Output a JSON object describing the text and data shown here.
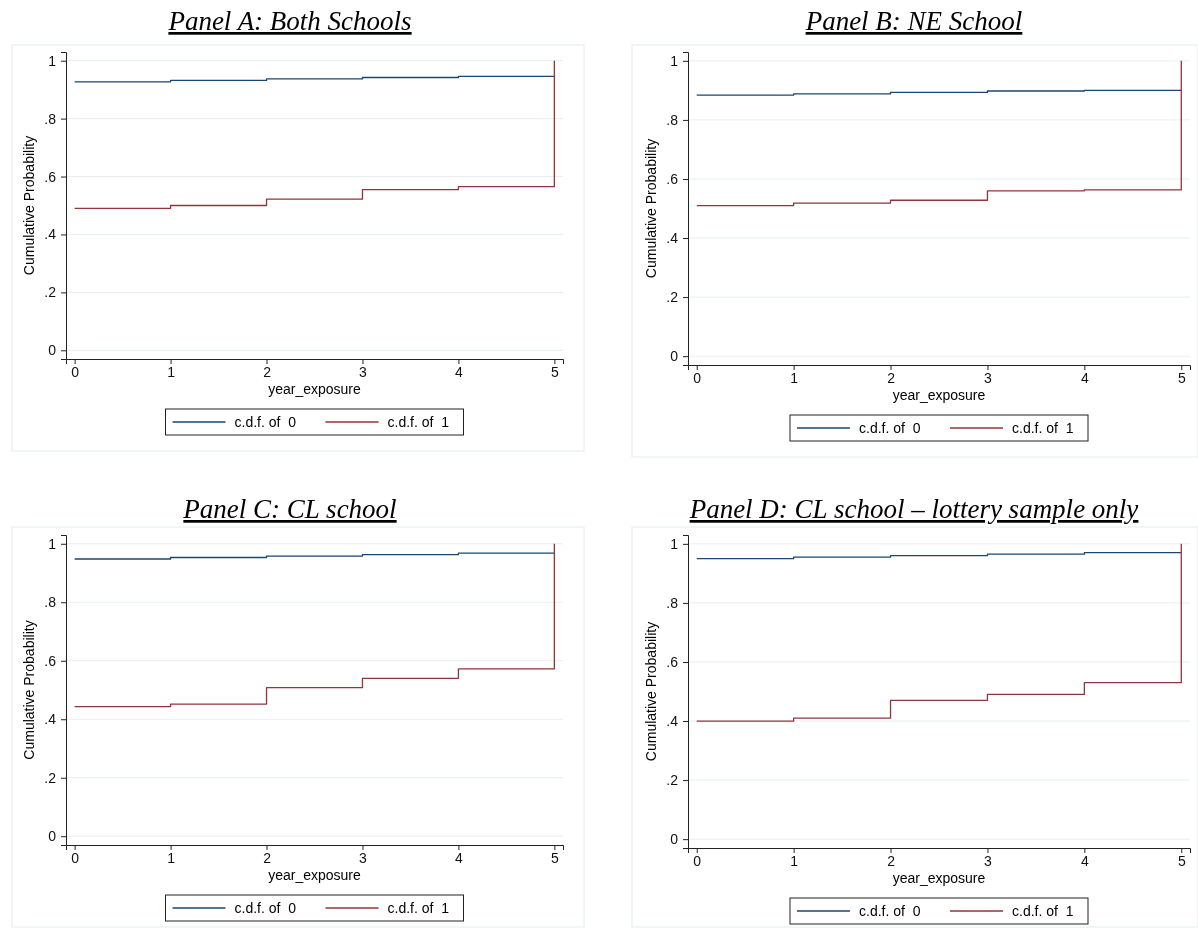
{
  "chart_data": [
    {
      "type": "step",
      "title": "Panel A: Both Schools",
      "xlabel": "year_exposure",
      "ylabel": "Cumulative Probability",
      "x": [
        0,
        1,
        2,
        3,
        4,
        5
      ],
      "xlim": [
        -0.09,
        5.09
      ],
      "xticks": [
        0,
        1,
        2,
        3,
        4,
        5
      ],
      "ylim": [
        -0.03,
        1.03
      ],
      "yticks": [
        {
          "value": 0,
          "label": "0"
        },
        {
          "value": 0.2,
          "label": ".2"
        },
        {
          "value": 0.4,
          "label": ".4"
        },
        {
          "value": 0.6,
          "label": ".6"
        },
        {
          "value": 0.8,
          "label": ".8"
        },
        {
          "value": 1,
          "label": "1"
        }
      ],
      "grid": "y",
      "legend": "bottom",
      "series": [
        {
          "name": "c.d.f. of  0",
          "color": "#1a476f",
          "values": [
            0.927,
            0.932,
            0.937,
            0.942,
            0.946,
            0.946
          ]
        },
        {
          "name": "c.d.f. of  1",
          "color": "#90353b",
          "values": [
            0.49,
            0.5,
            0.522,
            0.555,
            0.565,
            1
          ]
        }
      ]
    },
    {
      "type": "step",
      "title": "Panel B: NE School",
      "xlabel": "year_exposure",
      "ylabel": "Cumulative Probability",
      "x": [
        0,
        1,
        2,
        3,
        4,
        5
      ],
      "xlim": [
        -0.09,
        5.09
      ],
      "xticks": [
        0,
        1,
        2,
        3,
        4,
        5
      ],
      "ylim": [
        -0.03,
        1.03
      ],
      "yticks": [
        {
          "value": 0,
          "label": "0"
        },
        {
          "value": 0.2,
          "label": ".2"
        },
        {
          "value": 0.4,
          "label": ".4"
        },
        {
          "value": 0.6,
          "label": ".6"
        },
        {
          "value": 0.8,
          "label": ".8"
        },
        {
          "value": 1,
          "label": "1"
        }
      ],
      "grid": "y",
      "legend": "bottom",
      "series": [
        {
          "name": "c.d.f. of  0",
          "color": "#1a476f",
          "values": [
            0.884,
            0.888,
            0.893,
            0.898,
            0.9,
            0.9
          ]
        },
        {
          "name": "c.d.f. of  1",
          "color": "#90353b",
          "values": [
            0.51,
            0.518,
            0.528,
            0.56,
            0.563,
            1
          ]
        }
      ]
    },
    {
      "type": "step",
      "title": "Panel C: CL school",
      "xlabel": "year_exposure",
      "ylabel": "Cumulative Probability",
      "x": [
        0,
        1,
        2,
        3,
        4,
        5
      ],
      "xlim": [
        -0.09,
        5.09
      ],
      "xticks": [
        0,
        1,
        2,
        3,
        4,
        5
      ],
      "ylim": [
        -0.03,
        1.03
      ],
      "yticks": [
        {
          "value": 0,
          "label": "0"
        },
        {
          "value": 0.2,
          "label": ".2"
        },
        {
          "value": 0.4,
          "label": ".4"
        },
        {
          "value": 0.6,
          "label": ".6"
        },
        {
          "value": 0.8,
          "label": ".8"
        },
        {
          "value": 1,
          "label": "1"
        }
      ],
      "grid": "y",
      "legend": "bottom",
      "series": [
        {
          "name": "c.d.f. of  0",
          "color": "#1a476f",
          "values": [
            0.948,
            0.953,
            0.958,
            0.963,
            0.968,
            0.968
          ]
        },
        {
          "name": "c.d.f. of  1",
          "color": "#90353b",
          "values": [
            0.443,
            0.452,
            0.508,
            0.54,
            0.572,
            1
          ]
        }
      ]
    },
    {
      "type": "step",
      "title": "Panel D: CL school – lottery sample only",
      "xlabel": "year_exposure",
      "ylabel": "Cumulative Probability",
      "x": [
        0,
        1,
        2,
        3,
        4,
        5
      ],
      "xlim": [
        -0.09,
        5.09
      ],
      "xticks": [
        0,
        1,
        2,
        3,
        4,
        5
      ],
      "ylim": [
        -0.03,
        1.03
      ],
      "yticks": [
        {
          "value": 0,
          "label": "0"
        },
        {
          "value": 0.2,
          "label": ".2"
        },
        {
          "value": 0.4,
          "label": ".4"
        },
        {
          "value": 0.6,
          "label": ".6"
        },
        {
          "value": 0.8,
          "label": ".8"
        },
        {
          "value": 1,
          "label": "1"
        }
      ],
      "grid": "y",
      "legend": "bottom",
      "series": [
        {
          "name": "c.d.f. of  0",
          "color": "#1a476f",
          "values": [
            0.95,
            0.955,
            0.96,
            0.965,
            0.97,
            0.97
          ]
        },
        {
          "name": "c.d.f. of  1",
          "color": "#90353b",
          "values": [
            0.4,
            0.41,
            0.47,
            0.49,
            0.53,
            1
          ]
        }
      ]
    }
  ]
}
